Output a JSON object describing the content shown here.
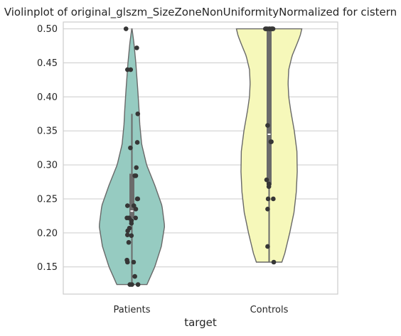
{
  "chart_data": {
    "type": "violin",
    "title": "Violinplot of original_glszm_SizeZoneNonUniformityNormalized for cistern",
    "xlabel": "target",
    "ylabel": "",
    "categories": [
      "Patients",
      "Controls"
    ],
    "colors": [
      "#96CBC1",
      "#F6F8BA"
    ],
    "ylim": [
      0.11,
      0.51
    ],
    "yticks": [
      0.15,
      0.2,
      0.25,
      0.3,
      0.35,
      0.4,
      0.45,
      0.5
    ],
    "ytick_labels": [
      "0.15",
      "0.20",
      "0.25",
      "0.30",
      "0.35",
      "0.40",
      "0.45",
      "0.50"
    ],
    "grid": true,
    "violins": [
      {
        "name": "Patients",
        "range": [
          0.124,
          0.5
        ],
        "profile": [
          [
            0.124,
            0.46
          ],
          [
            0.15,
            0.7
          ],
          [
            0.18,
            0.9
          ],
          [
            0.21,
            1.0
          ],
          [
            0.24,
            0.92
          ],
          [
            0.27,
            0.7
          ],
          [
            0.3,
            0.45
          ],
          [
            0.33,
            0.3
          ],
          [
            0.36,
            0.24
          ],
          [
            0.38,
            0.22
          ],
          [
            0.41,
            0.18
          ],
          [
            0.45,
            0.12
          ],
          [
            0.48,
            0.06
          ],
          [
            0.5,
            0.005
          ]
        ],
        "box": {
          "q1": 0.222,
          "median": 0.232,
          "q3": 0.287,
          "whisker_low": 0.124,
          "whisker_high": 0.375
        },
        "points": [
          {
            "y": 0.5,
            "jitter": -0.24
          },
          {
            "y": 0.472,
            "jitter": 0.2
          },
          {
            "y": 0.44,
            "jitter": -0.18
          },
          {
            "y": 0.44,
            "jitter": -0.05
          },
          {
            "y": 0.375,
            "jitter": 0.24
          },
          {
            "y": 0.333,
            "jitter": 0.22
          },
          {
            "y": 0.325,
            "jitter": -0.06
          },
          {
            "y": 0.296,
            "jitter": 0.18
          },
          {
            "y": 0.284,
            "jitter": 0.12
          },
          {
            "y": 0.284,
            "jitter": 0.16
          },
          {
            "y": 0.25,
            "jitter": 0.22
          },
          {
            "y": 0.25,
            "jitter": 0.24
          },
          {
            "y": 0.24,
            "jitter": -0.18
          },
          {
            "y": 0.24,
            "jitter": 0.08
          },
          {
            "y": 0.235,
            "jitter": 0.16
          },
          {
            "y": 0.222,
            "jitter": -0.2
          },
          {
            "y": 0.222,
            "jitter": -0.12
          },
          {
            "y": 0.222,
            "jitter": 0.15
          },
          {
            "y": 0.218,
            "jitter": -0.02
          },
          {
            "y": 0.214,
            "jitter": -0.02
          },
          {
            "y": 0.207,
            "jitter": -0.1
          },
          {
            "y": 0.203,
            "jitter": -0.17
          },
          {
            "y": 0.197,
            "jitter": -0.18
          },
          {
            "y": 0.196,
            "jitter": -0.02
          },
          {
            "y": 0.186,
            "jitter": -0.13
          },
          {
            "y": 0.16,
            "jitter": -0.2
          },
          {
            "y": 0.157,
            "jitter": -0.18
          },
          {
            "y": 0.157,
            "jitter": 0.07
          },
          {
            "y": 0.136,
            "jitter": 0.12
          },
          {
            "y": 0.124,
            "jitter": -0.08
          },
          {
            "y": 0.124,
            "jitter": 0.0
          },
          {
            "y": 0.124,
            "jitter": 0.25
          }
        ]
      },
      {
        "name": "Controls",
        "range": [
          0.157,
          0.5
        ],
        "profile": [
          [
            0.157,
            0.39
          ],
          [
            0.17,
            0.48
          ],
          [
            0.2,
            0.63
          ],
          [
            0.23,
            0.76
          ],
          [
            0.26,
            0.83
          ],
          [
            0.29,
            0.86
          ],
          [
            0.32,
            0.85
          ],
          [
            0.35,
            0.77
          ],
          [
            0.38,
            0.66
          ],
          [
            0.4,
            0.6
          ],
          [
            0.42,
            0.58
          ],
          [
            0.44,
            0.6
          ],
          [
            0.46,
            0.7
          ],
          [
            0.48,
            0.87
          ],
          [
            0.49,
            0.95
          ],
          [
            0.5,
            1.0
          ]
        ],
        "box": {
          "q1": 0.27,
          "median": 0.345,
          "q3": 0.5,
          "whisker_low": 0.157,
          "whisker_high": 0.5
        },
        "points": [
          {
            "y": 0.5,
            "jitter": -0.15
          },
          {
            "y": 0.5,
            "jitter": -0.12
          },
          {
            "y": 0.5,
            "jitter": -0.08
          },
          {
            "y": 0.5,
            "jitter": 0.0
          },
          {
            "y": 0.5,
            "jitter": 0.03
          },
          {
            "y": 0.5,
            "jitter": 0.1
          },
          {
            "y": 0.5,
            "jitter": 0.13
          },
          {
            "y": 0.5,
            "jitter": 0.16
          },
          {
            "y": 0.358,
            "jitter": -0.06
          },
          {
            "y": 0.334,
            "jitter": 0.07
          },
          {
            "y": 0.334,
            "jitter": 0.09
          },
          {
            "y": 0.278,
            "jitter": -0.1
          },
          {
            "y": 0.272,
            "jitter": -0.01
          },
          {
            "y": 0.268,
            "jitter": -0.01
          },
          {
            "y": 0.25,
            "jitter": -0.04
          },
          {
            "y": 0.25,
            "jitter": 0.17
          },
          {
            "y": 0.235,
            "jitter": -0.06
          },
          {
            "y": 0.18,
            "jitter": -0.06
          },
          {
            "y": 0.157,
            "jitter": 0.19
          }
        ]
      }
    ]
  }
}
